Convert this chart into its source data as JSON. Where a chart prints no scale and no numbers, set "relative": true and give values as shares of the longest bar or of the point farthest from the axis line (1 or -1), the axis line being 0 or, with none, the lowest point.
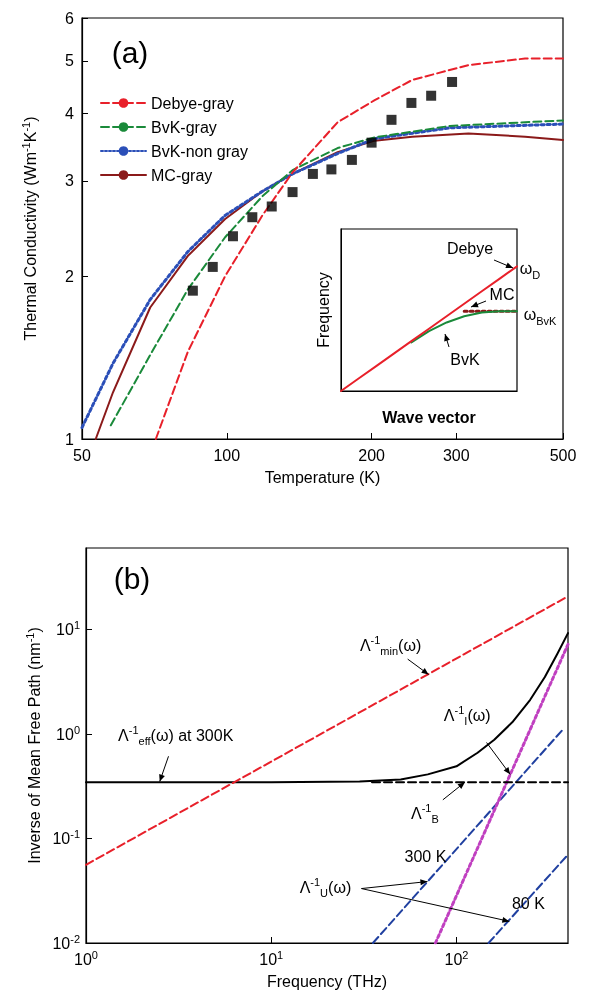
{
  "chart_data": [
    {
      "type": "line",
      "annotations": [
        "(a)"
      ],
      "xlabel": "Temperature (K)",
      "ylabel": "Thermal Conductivity (Wm$^{-1}$K$^{-1}$)",
      "log": "xy",
      "xlim": [
        50,
        500
      ],
      "xticks": [
        50,
        100,
        200,
        300,
        500
      ],
      "ylim": [
        1,
        6
      ],
      "yticks": [
        1,
        2,
        3,
        4,
        5,
        6
      ],
      "legend": "top left",
      "series": [
        {
          "name": "Debye-gray",
          "color": "#e8202a",
          "line_style": "dashed",
          "marker": "none",
          "x": [
            71.2,
            83,
            99.2,
            118.6,
            137,
            170,
            203,
            243,
            318,
            417,
            500
          ],
          "values": [
            1,
            1.45,
            2,
            2.59,
            3.11,
            3.85,
            4.23,
            4.61,
            4.91,
            5.05,
            5.05
          ]
        },
        {
          "name": "BvK-gray",
          "color": "#1a8a3a",
          "line_style": "dashed",
          "marker": "none",
          "x": [
            57.4,
            69.3,
            83,
            99.2,
            118.6,
            137,
            170,
            203,
            291,
            500
          ],
          "values": [
            1.06,
            1.43,
            1.89,
            2.36,
            2.81,
            3.14,
            3.45,
            3.61,
            3.79,
            3.88
          ]
        },
        {
          "name": "BvK-non gray",
          "color": "#2b4fb8",
          "line_style": "dotted",
          "marker": "none",
          "x": [
            50,
            58,
            69.3,
            83,
            99.2,
            118.6,
            137,
            170,
            203,
            291,
            500
          ],
          "values": [
            1.05,
            1.38,
            1.81,
            2.22,
            2.59,
            2.87,
            3.09,
            3.37,
            3.59,
            3.76,
            3.82
          ]
        },
        {
          "name": "MC-gray",
          "color": "#8b1a1a",
          "line_style": "solid",
          "marker": "none",
          "x": [
            53.4,
            58,
            69.3,
            83,
            99.2,
            118.6,
            137,
            170,
            203,
            243,
            318,
            417,
            500
          ],
          "values": [
            1,
            1.22,
            1.75,
            2.18,
            2.55,
            2.87,
            3.09,
            3.39,
            3.56,
            3.62,
            3.67,
            3.62,
            3.57
          ]
        },
        {
          "type": "scatter",
          "color": "#000000",
          "marker": "square",
          "x": [
            85,
            93.5,
            103,
            113,
            124,
            137,
            151,
            165,
            182,
            200,
            220,
            242,
            266,
            294
          ],
          "values": [
            1.88,
            2.08,
            2.37,
            2.57,
            2.69,
            2.86,
            3.09,
            3.15,
            3.28,
            3.53,
            3.89,
            4.18,
            4.31,
            4.57
          ]
        }
      ]
    },
    {
      "type": "line",
      "relative": true,
      "xlabel": "Wave vector",
      "ylabel": "Frequency",
      "categories": [
        null,
        null,
        null,
        null,
        null,
        null,
        null,
        null,
        null,
        null,
        null
      ],
      "annotations": [
        "Debye",
        "ω$_{D}$",
        "MC",
        "ω$_{BvK}$",
        "BvK"
      ],
      "series": [
        {
          "color": "#e8202a",
          "line_style": "solid",
          "marker": "none",
          "values": [
            0,
            0.1,
            0.2,
            0.3,
            0.4,
            0.5,
            0.6,
            0.7,
            0.8,
            0.9,
            1
          ]
        },
        {
          "color": "#1a8a3a",
          "line_style": "solid",
          "marker": "none",
          "values": [
            null,
            null,
            null,
            null,
            0.39,
            0.48,
            0.55,
            0.6,
            0.63,
            0.64,
            0.64
          ]
        },
        {
          "color": "#8b1a1a",
          "line_style": "dotted",
          "marker": "none",
          "values": [
            null,
            null,
            null,
            null,
            null,
            null,
            null,
            0.64,
            0.64,
            0.64,
            0.64
          ]
        }
      ]
    },
    {
      "type": "line",
      "annotations": [
        "(b)",
        {
          "text": "Λ$^{-1}$$_{min}$(ω)",
          "x": 70.7,
          "y": 3.7
        },
        {
          "text": "Λ$^{-1}$$_{eff}$(ω) at 300K",
          "x": 2.5,
          "y": 0.35
        },
        {
          "text": "Λ$^{-1}$$_{I}$(ω)",
          "x": 195,
          "y": 0.41
        },
        {
          "text": "Λ$^{-1}$$_{B}$",
          "x": 111,
          "y": 0.345
        },
        {
          "text": "300 K",
          "x": 69.7,
          "y": 0.0387
        },
        {
          "text": "80 K",
          "x": 193,
          "y": 0.0161
        },
        {
          "text": "Λ$^{-1}$$_{U}$(ω)",
          "x": 69.7,
          "y": 0.0387
        }
      ],
      "xlabel": "Frequency (THz)",
      "ylabel": "Inverse of Mean Free Path (nm$^{-1}$)",
      "log": "xy",
      "xlim": [
        1,
        400
      ],
      "xticks": [
        {
          "value": 1,
          "label": "10$^{0}$"
        },
        {
          "value": 10,
          "label": "10$^{1}$"
        },
        {
          "value": 100,
          "label": "10$^{2}$"
        }
      ],
      "ylim": [
        0.01,
        60
      ],
      "yticks": [
        {
          "value": 0.01,
          "label": "10$^{-2}$"
        },
        {
          "value": 0.1,
          "label": "10$^{-1}$"
        },
        {
          "value": 1,
          "label": "10$^{0}$"
        },
        {
          "value": 10,
          "label": "10$^{1}$"
        }
      ],
      "series": [
        {
          "color": "#e8202a",
          "line_style": "dashed",
          "marker": "none",
          "x": [
            1,
            400
          ],
          "values": [
            0.056,
            20.7
          ]
        },
        {
          "color": "#000000",
          "line_style": "solid",
          "marker": "none",
          "x": [
            1,
            10,
            30,
            50,
            70,
            100,
            130,
            160,
            200,
            250,
            300,
            350,
            400
          ],
          "values": [
            0.345,
            0.345,
            0.35,
            0.366,
            0.41,
            0.49,
            0.66,
            0.88,
            1.29,
            2.12,
            3.5,
            5.8,
            9.2
          ]
        },
        {
          "color": "#000000",
          "line_style": "dashed",
          "marker": "none",
          "x": [
            35,
            400
          ],
          "values": [
            0.345,
            0.345
          ]
        },
        {
          "color": "#c040c0",
          "line_style": "dotted",
          "marker": "none",
          "x": [
            77,
            400
          ],
          "values": [
            0.01,
            7.2
          ]
        },
        {
          "color": "#2040a0",
          "line_style": "dashed",
          "marker": "none",
          "x": [
            35.4,
            380
          ],
          "values": [
            0.01,
            1.13
          ]
        },
        {
          "color": "#2040a0",
          "line_style": "dashed",
          "marker": "none",
          "x": [
            149,
            400
          ],
          "values": [
            0.01,
            0.07
          ]
        }
      ]
    }
  ]
}
